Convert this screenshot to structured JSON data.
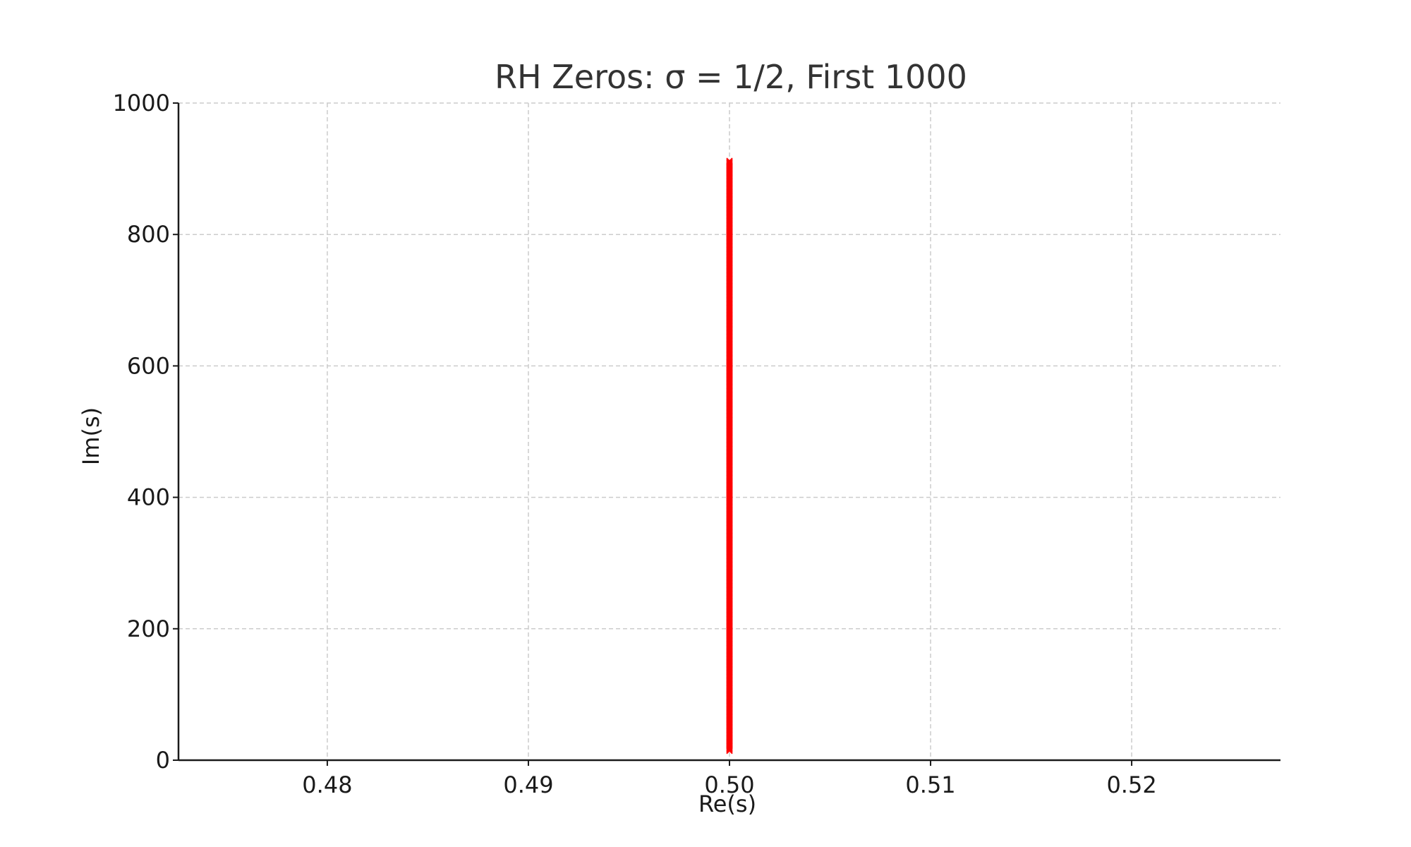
{
  "chart_data": {
    "type": "scatter",
    "title": "RH Zeros: σ = 1/2, First 1000",
    "xlabel": "Re(s)",
    "ylabel": "Im(s)",
    "xlim": [
      0.4726,
      0.5274
    ],
    "ylim": [
      0,
      1000
    ],
    "x_ticks": [
      0.48,
      0.49,
      0.5,
      0.51,
      0.52
    ],
    "x_tick_labels": [
      "0.48",
      "0.49",
      "0.50",
      "0.51",
      "0.52"
    ],
    "y_ticks": [
      0,
      200,
      400,
      600,
      800,
      1000
    ],
    "y_tick_labels": [
      "0",
      "200",
      "400",
      "600",
      "800",
      "1000"
    ],
    "grid": true,
    "marker": "x",
    "point_color": "#ff0000",
    "series": [
      {
        "x": 0.5,
        "y_min": 14.13,
        "y_max": 912,
        "count": 1000
      }
    ]
  }
}
